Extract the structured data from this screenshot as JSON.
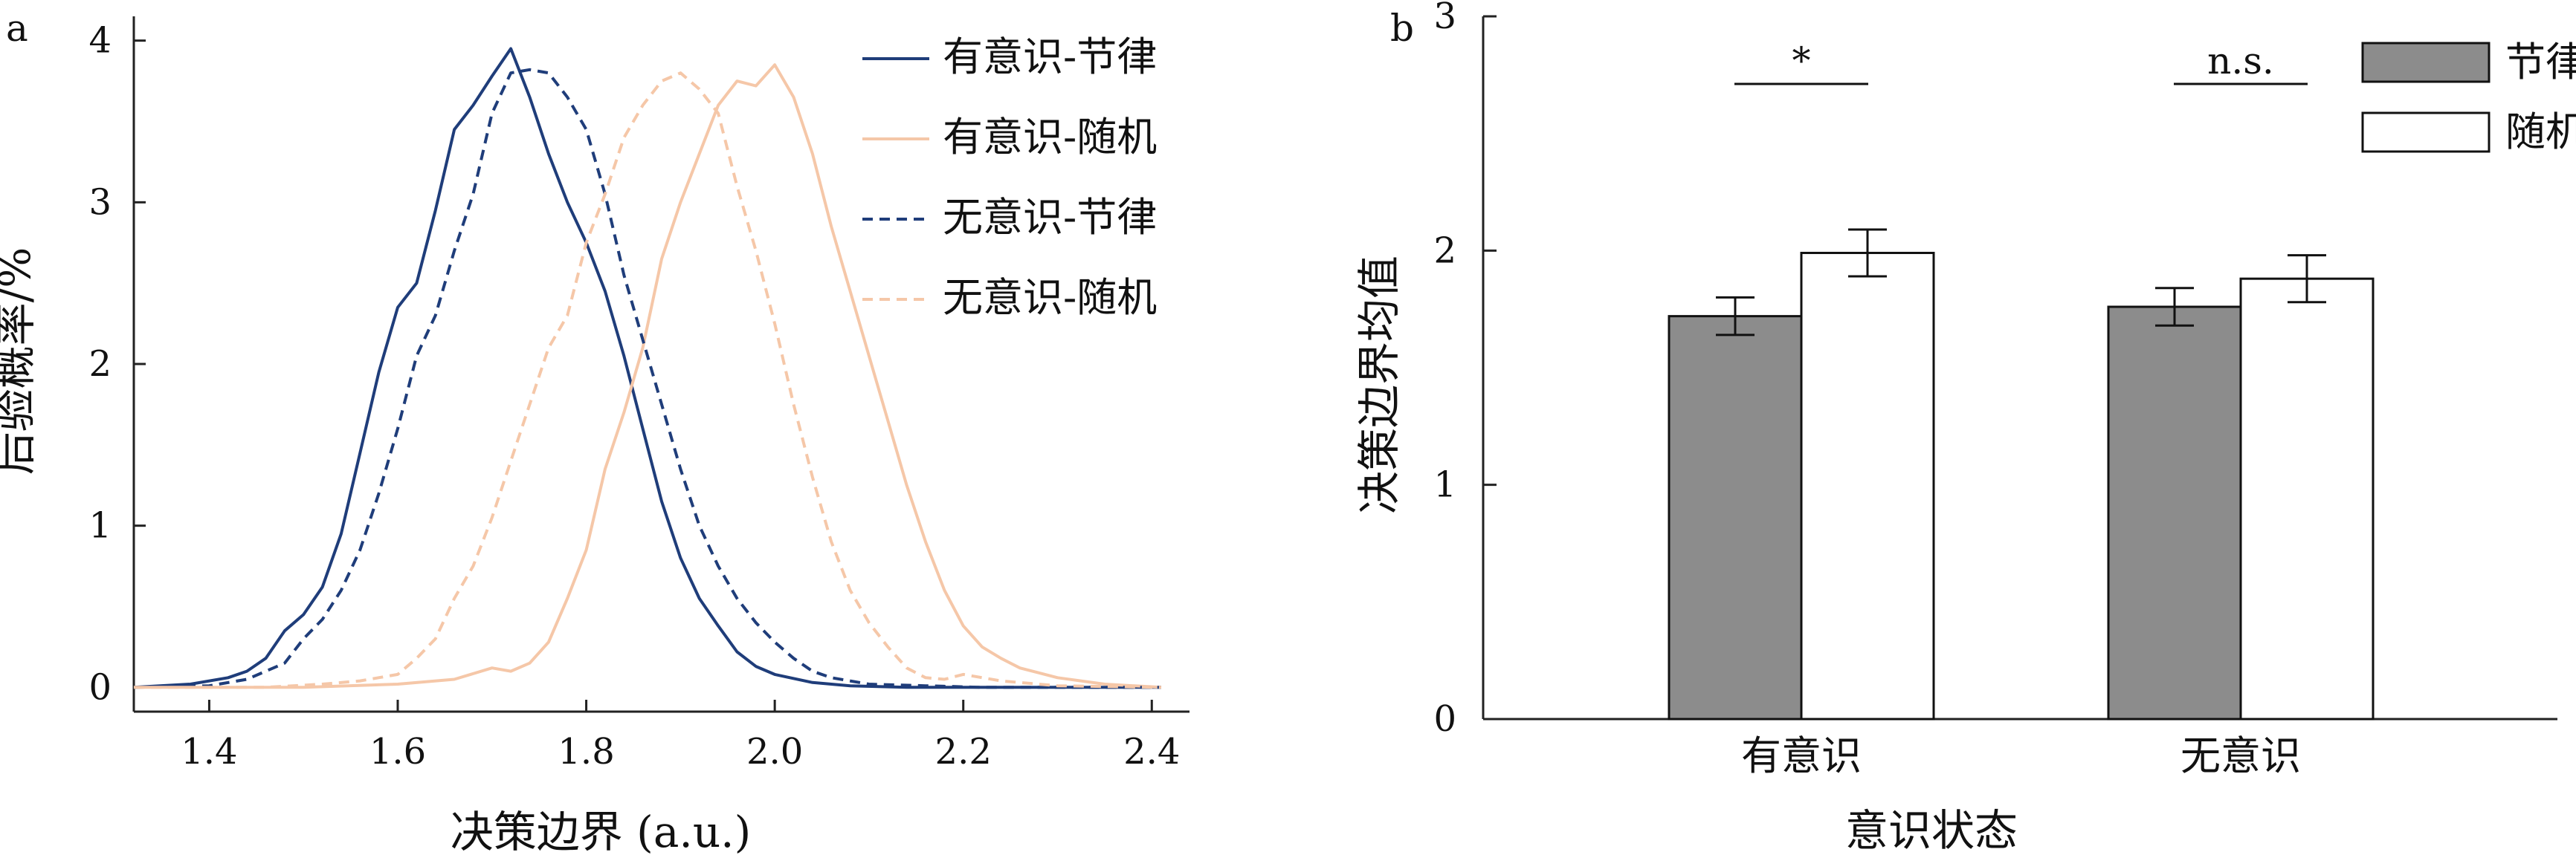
{
  "chart_data": [
    {
      "panel_label": "a",
      "type": "line",
      "xlabel": "决策边界 (a.u.)",
      "ylabel": "后验概率/%",
      "xlim": [
        1.32,
        2.44
      ],
      "ylim": [
        -0.15,
        4.15
      ],
      "x_ticks": [
        1.4,
        1.6,
        1.8,
        2.0,
        2.2,
        2.4
      ],
      "x_tick_labels": [
        "1.4",
        "1.6",
        "1.8",
        "2.0",
        "2.2",
        "2.4"
      ],
      "y_ticks": [
        0,
        1,
        2,
        3,
        4
      ],
      "y_tick_labels": [
        "0",
        "1",
        "2",
        "3",
        "4"
      ],
      "legend_position": "top-right",
      "series": [
        {
          "name": "有意识-节律",
          "color": "#1f3d7a",
          "dash": "solid",
          "x": [
            1.32,
            1.38,
            1.42,
            1.44,
            1.46,
            1.48,
            1.5,
            1.52,
            1.54,
            1.56,
            1.58,
            1.6,
            1.62,
            1.64,
            1.66,
            1.68,
            1.7,
            1.72,
            1.74,
            1.76,
            1.78,
            1.8,
            1.82,
            1.84,
            1.86,
            1.88,
            1.9,
            1.92,
            1.94,
            1.96,
            1.98,
            2.0,
            2.04,
            2.08,
            2.14,
            2.2,
            2.3,
            2.41
          ],
          "y": [
            0,
            0.02,
            0.06,
            0.1,
            0.18,
            0.35,
            0.45,
            0.62,
            0.95,
            1.45,
            1.95,
            2.35,
            2.5,
            2.95,
            3.45,
            3.6,
            3.78,
            3.95,
            3.65,
            3.3,
            3.0,
            2.75,
            2.45,
            2.05,
            1.6,
            1.15,
            0.8,
            0.55,
            0.38,
            0.22,
            0.13,
            0.08,
            0.03,
            0.01,
            0.0,
            0.0,
            0.0,
            0.0
          ]
        },
        {
          "name": "有意识-随机",
          "color": "#f5c7a8",
          "dash": "solid",
          "x": [
            1.32,
            1.5,
            1.6,
            1.66,
            1.7,
            1.72,
            1.74,
            1.76,
            1.78,
            1.8,
            1.82,
            1.84,
            1.86,
            1.88,
            1.9,
            1.92,
            1.94,
            1.96,
            1.98,
            2.0,
            2.02,
            2.04,
            2.06,
            2.08,
            2.1,
            2.12,
            2.14,
            2.16,
            2.18,
            2.2,
            2.22,
            2.24,
            2.26,
            2.3,
            2.35,
            2.41
          ],
          "y": [
            0,
            0.0,
            0.02,
            0.05,
            0.12,
            0.1,
            0.15,
            0.28,
            0.55,
            0.85,
            1.35,
            1.7,
            2.1,
            2.65,
            3.0,
            3.3,
            3.6,
            3.75,
            3.72,
            3.85,
            3.65,
            3.3,
            2.85,
            2.45,
            2.05,
            1.65,
            1.25,
            0.9,
            0.6,
            0.38,
            0.25,
            0.18,
            0.12,
            0.06,
            0.02,
            0.0
          ]
        },
        {
          "name": "无意识-节律",
          "color": "#1f3d7a",
          "dash": "dashed",
          "x": [
            1.32,
            1.4,
            1.44,
            1.48,
            1.5,
            1.52,
            1.54,
            1.56,
            1.58,
            1.6,
            1.62,
            1.64,
            1.66,
            1.68,
            1.7,
            1.72,
            1.74,
            1.76,
            1.78,
            1.8,
            1.82,
            1.84,
            1.86,
            1.88,
            1.9,
            1.92,
            1.94,
            1.96,
            1.98,
            2.0,
            2.02,
            2.04,
            2.06,
            2.1,
            2.16,
            2.22,
            2.3,
            2.41
          ],
          "y": [
            0,
            0.01,
            0.05,
            0.15,
            0.3,
            0.42,
            0.6,
            0.85,
            1.2,
            1.6,
            2.05,
            2.3,
            2.7,
            3.05,
            3.55,
            3.8,
            3.82,
            3.8,
            3.65,
            3.45,
            3.05,
            2.55,
            2.15,
            1.75,
            1.35,
            1.0,
            0.75,
            0.55,
            0.4,
            0.28,
            0.18,
            0.1,
            0.06,
            0.02,
            0.01,
            0.0,
            0.0,
            0.0
          ]
        },
        {
          "name": "无意识-随机",
          "color": "#f5c7a8",
          "dash": "dashed",
          "x": [
            1.32,
            1.46,
            1.52,
            1.56,
            1.6,
            1.62,
            1.64,
            1.66,
            1.68,
            1.7,
            1.72,
            1.74,
            1.76,
            1.78,
            1.8,
            1.82,
            1.84,
            1.86,
            1.88,
            1.9,
            1.92,
            1.94,
            1.96,
            1.98,
            2.0,
            2.02,
            2.04,
            2.06,
            2.08,
            2.1,
            2.12,
            2.14,
            2.16,
            2.18,
            2.2,
            2.24,
            2.3,
            2.41
          ],
          "y": [
            0,
            0.0,
            0.02,
            0.04,
            0.08,
            0.18,
            0.3,
            0.55,
            0.75,
            1.05,
            1.4,
            1.75,
            2.1,
            2.3,
            2.75,
            3.05,
            3.4,
            3.6,
            3.75,
            3.8,
            3.7,
            3.55,
            3.1,
            2.7,
            2.25,
            1.75,
            1.3,
            0.9,
            0.6,
            0.4,
            0.25,
            0.12,
            0.06,
            0.05,
            0.08,
            0.04,
            0.01,
            0.0
          ]
        }
      ]
    },
    {
      "panel_label": "b",
      "type": "bar",
      "xlabel": "意识状态",
      "ylabel": "决策边界均值",
      "ylim": [
        0,
        3
      ],
      "y_ticks": [
        0,
        1,
        2,
        3
      ],
      "y_tick_labels": [
        "0",
        "1",
        "2",
        "3"
      ],
      "categories": [
        "有意识",
        "无意识"
      ],
      "legend_position": "top-right",
      "series": [
        {
          "name": "节律",
          "color": "#8c8c8c",
          "values": [
            1.72,
            1.76
          ],
          "errors": [
            0.08,
            0.08
          ]
        },
        {
          "name": "随机",
          "color": "#ffffff",
          "values": [
            1.99,
            1.88
          ],
          "errors": [
            0.1,
            0.1
          ]
        }
      ],
      "significance": [
        "*",
        "n.s."
      ]
    }
  ]
}
